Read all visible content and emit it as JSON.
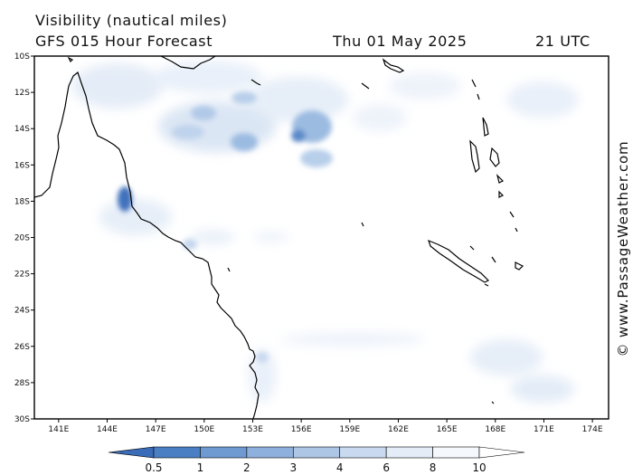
{
  "header": {
    "title": "Visibility (nautical miles)",
    "subtitle": "GFS 015 Hour Forecast",
    "date": "Thu 01 May 2025",
    "time": "21 UTC"
  },
  "credit": "© www.PassageWeather.com",
  "map": {
    "lon_range": [
      139.5,
      175
    ],
    "lat_range": [
      -30,
      -10
    ],
    "lat_ticks": [
      "10S",
      "12S",
      "14S",
      "16S",
      "18S",
      "20S",
      "22S",
      "24S",
      "26S",
      "28S",
      "30S"
    ],
    "lon_ticks": [
      "141E",
      "144E",
      "147E",
      "150E",
      "153E",
      "156E",
      "159E",
      "162E",
      "165E",
      "168E",
      "171E",
      "174E"
    ],
    "coastline_color": "#000000"
  },
  "legend": {
    "levels": [
      "0.5",
      "1",
      "2",
      "3",
      "4",
      "6",
      "8",
      "10"
    ],
    "colors": [
      "#3a6cb8",
      "#4a7fc4",
      "#6f99d1",
      "#8eb0dc",
      "#adc6e6",
      "#c9d9ef",
      "#e3ecf7",
      "#f5f8fc",
      "#ffffff"
    ]
  }
}
